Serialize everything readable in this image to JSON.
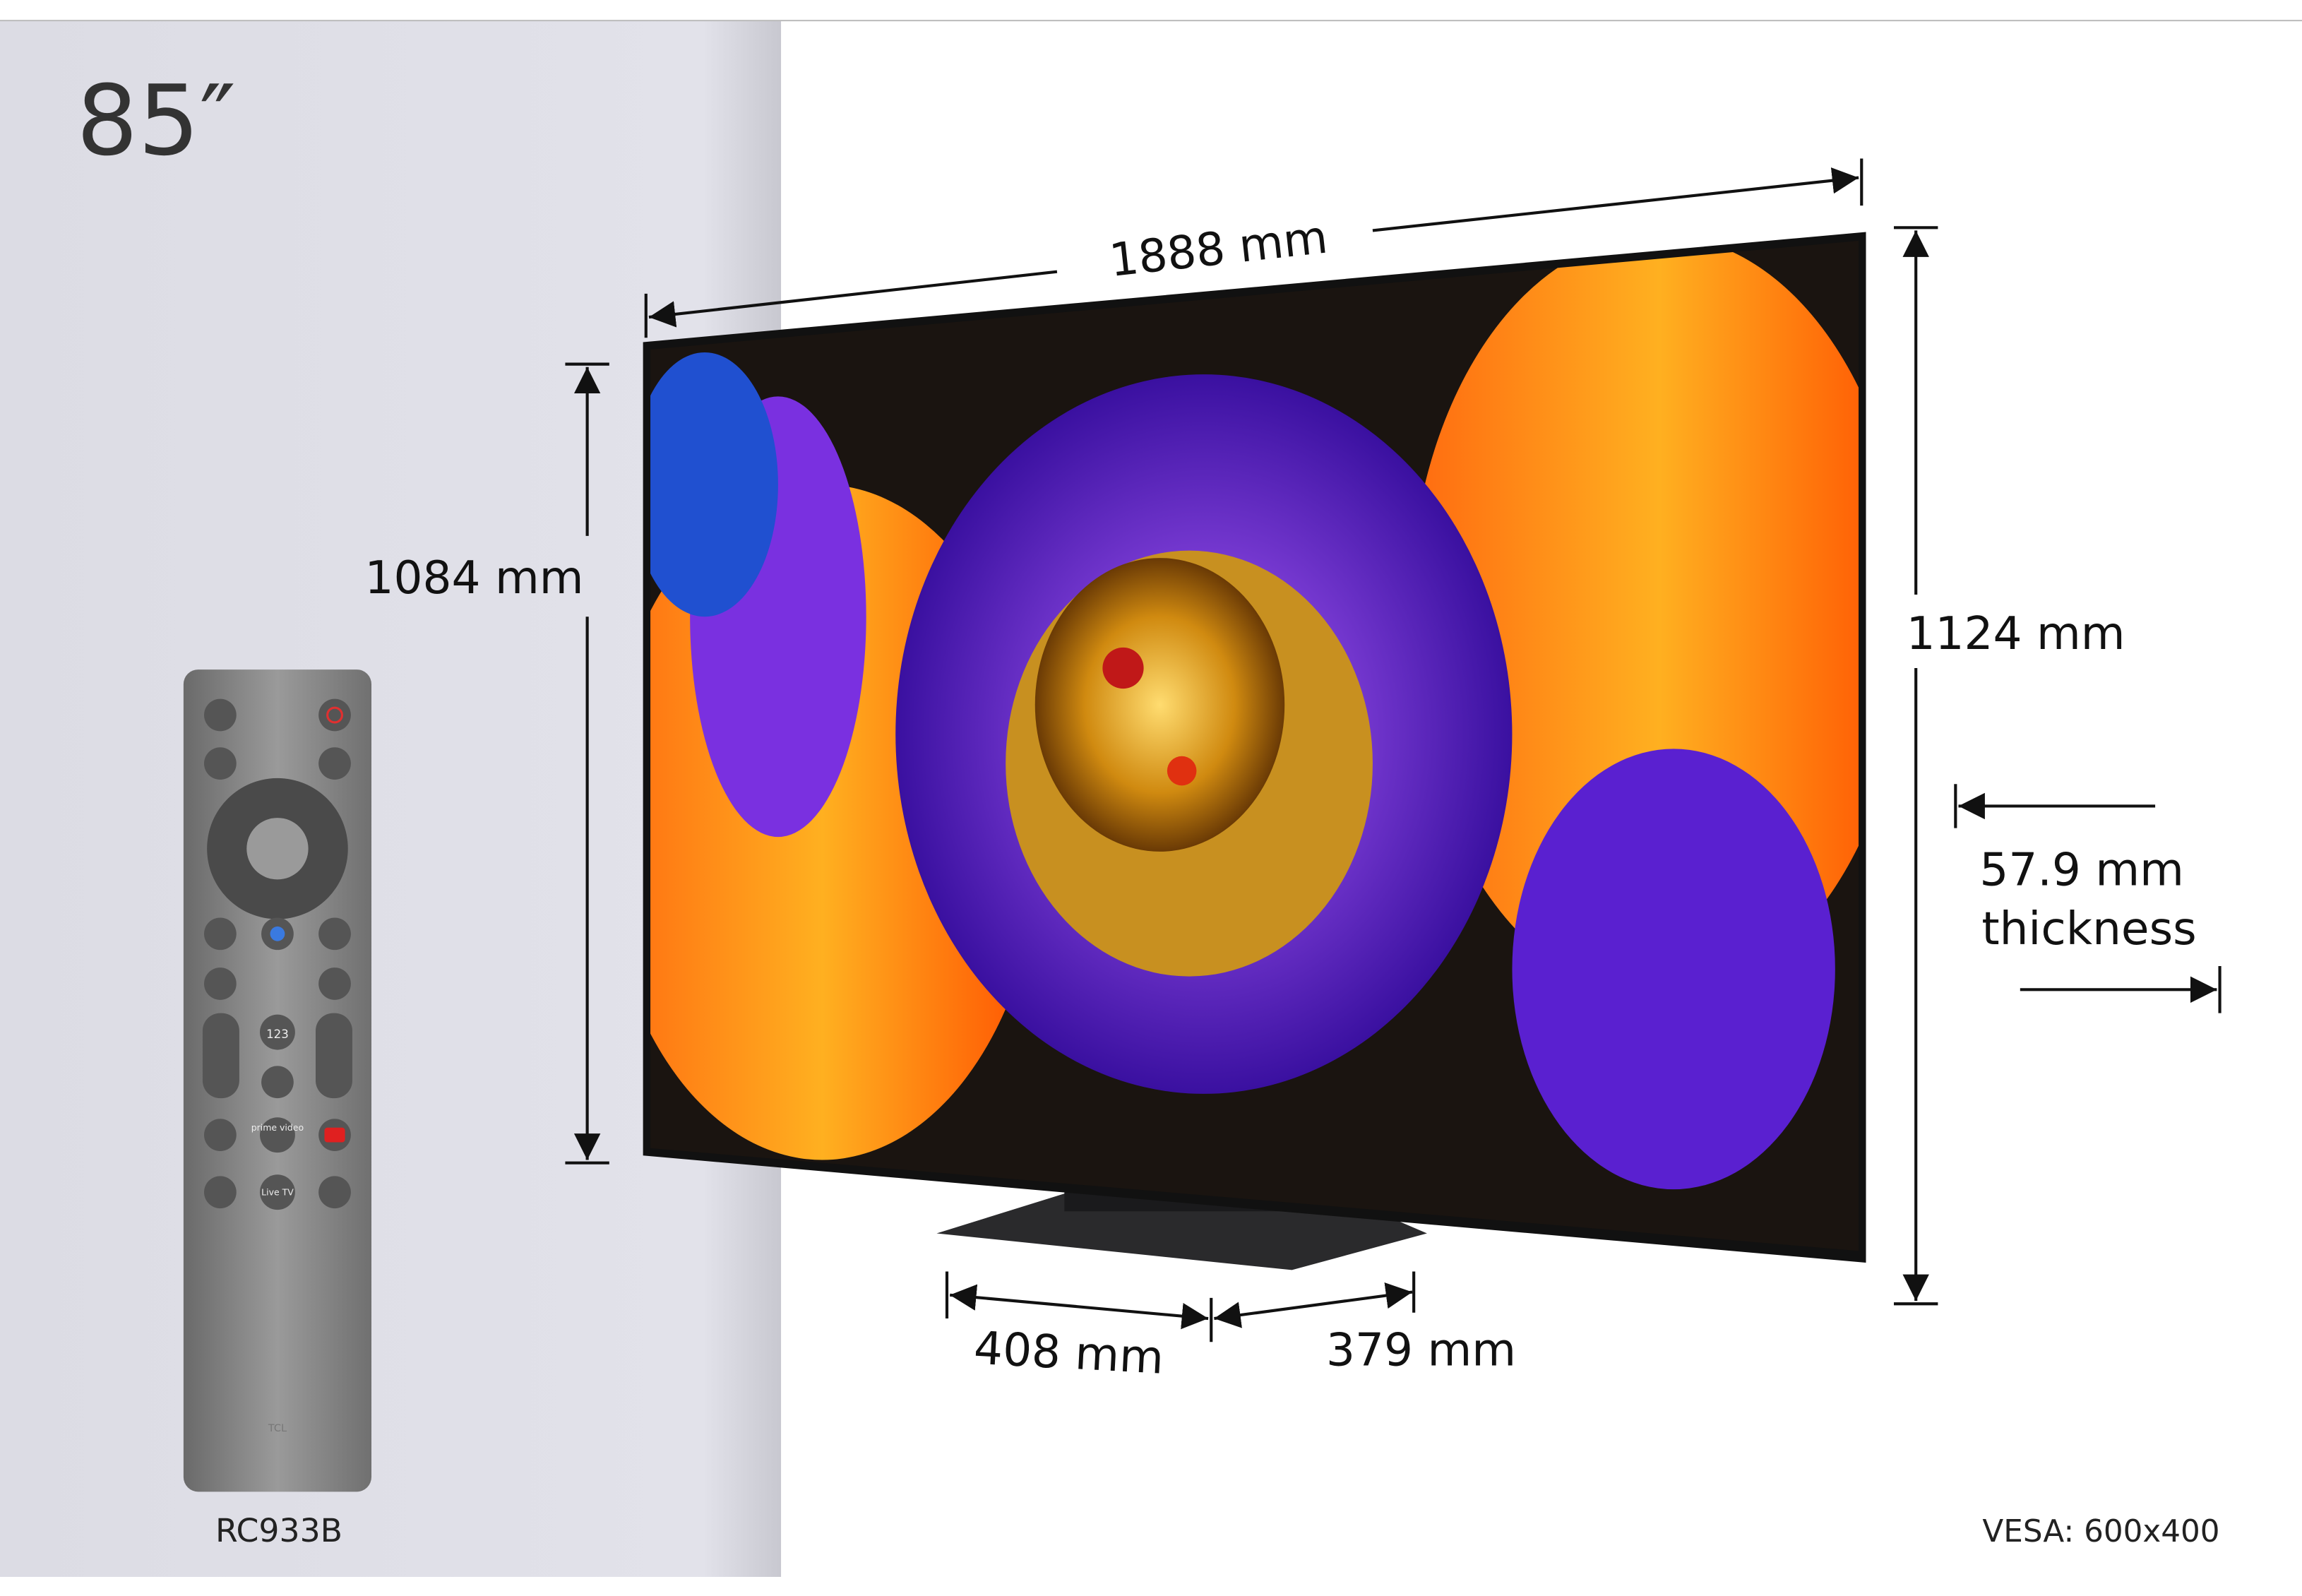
{
  "model_size": "85″",
  "dimensions": {
    "width": "1888 mm",
    "panel_height": "1084 mm",
    "total_height": "1124 mm",
    "thickness": "57.9 mm",
    "thickness_label": "thickness",
    "stand_width": "408 mm",
    "stand_depth": "379 mm"
  },
  "remote": {
    "model": "RC933B",
    "buttons": [
      "123",
      "prime video",
      "Live TV",
      "TCL"
    ]
  },
  "vesa": "VESA: 600x400"
}
